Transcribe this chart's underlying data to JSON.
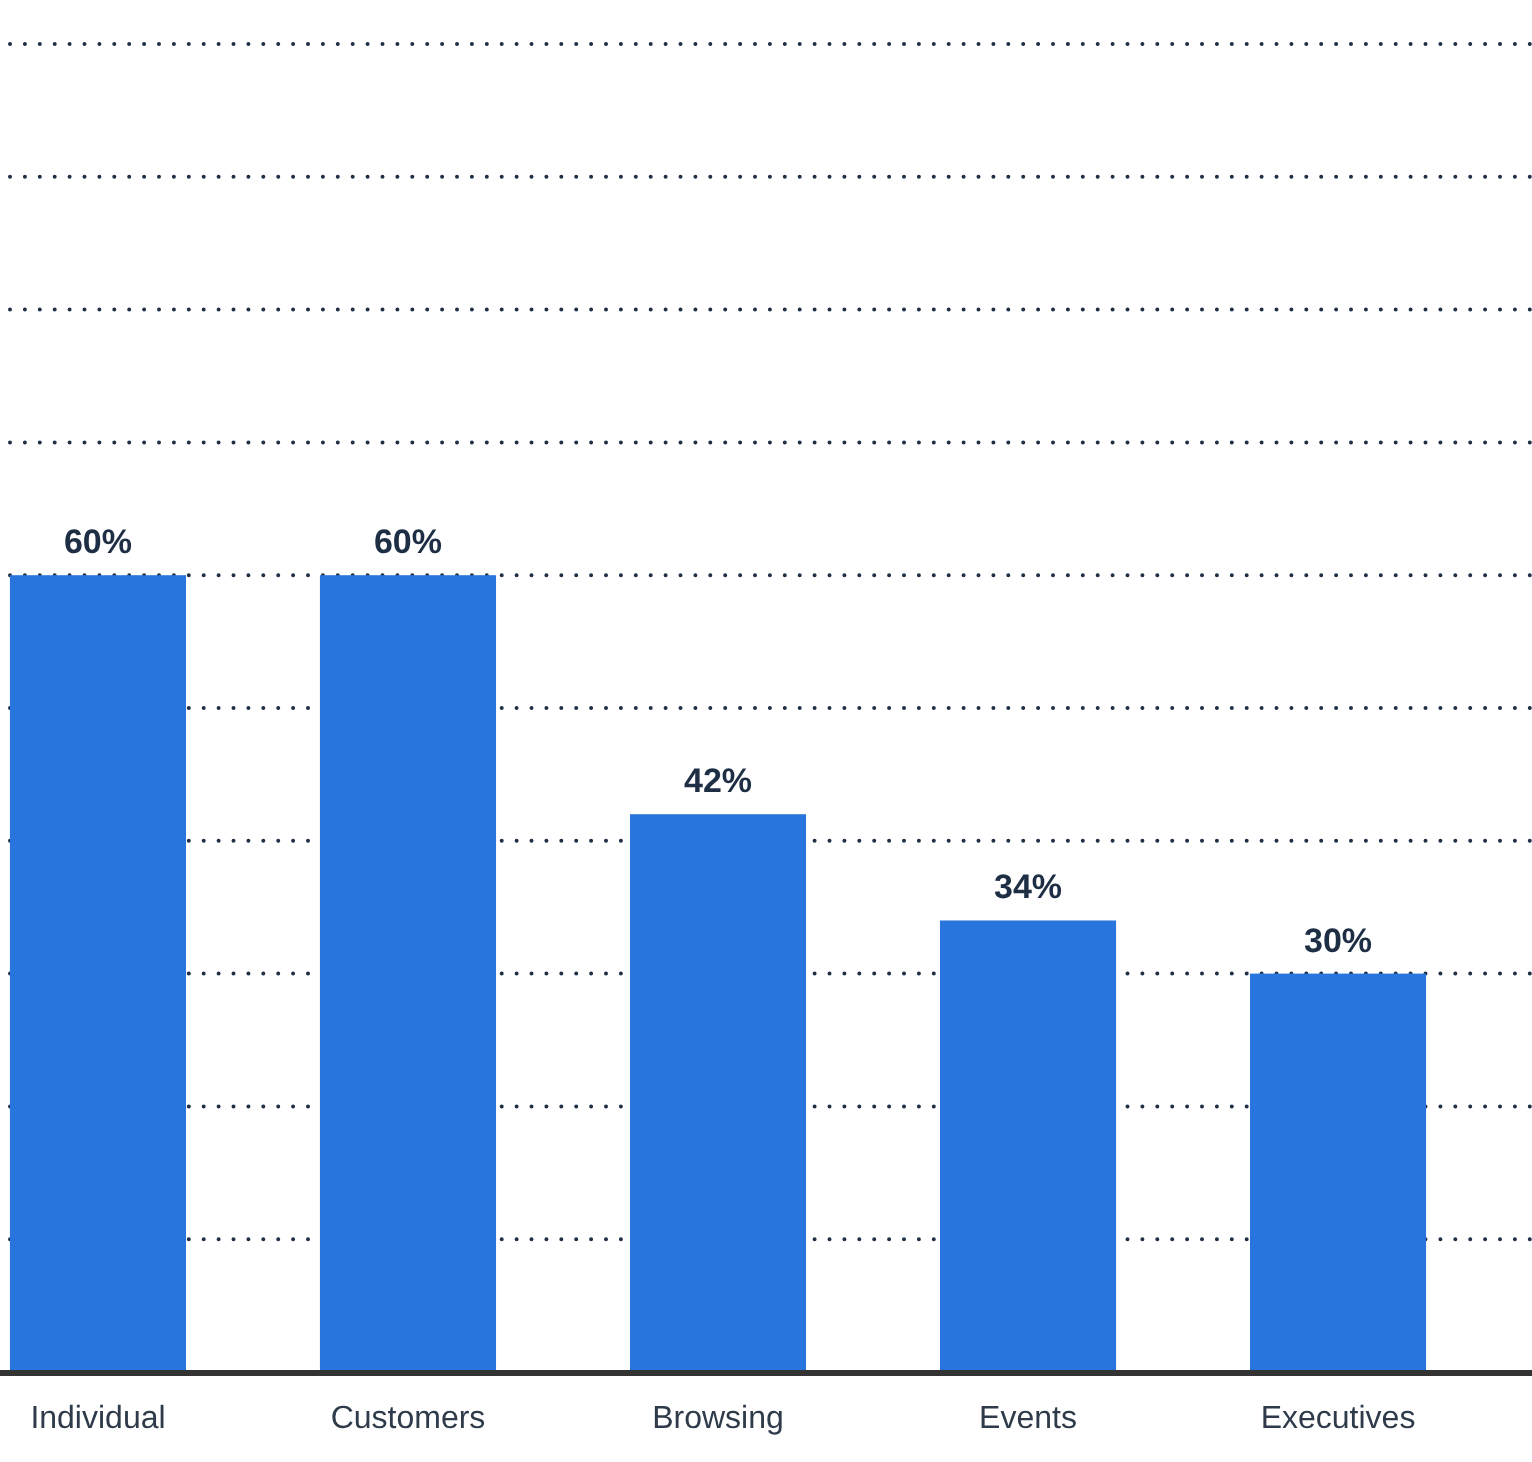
{
  "chart_data": {
    "type": "bar",
    "categories": [
      "Individual",
      "Customers",
      "Browsing",
      "Events",
      "Executives"
    ],
    "values": [
      60,
      60,
      42,
      34,
      30
    ],
    "value_labels": [
      "60%",
      "60%",
      "42%",
      "34%",
      "30%"
    ],
    "color": "#2875dd",
    "ylim": [
      0,
      100
    ],
    "yticks": [
      {
        "value": 0,
        "label": null
      },
      {
        "value": 10,
        "label": null
      },
      {
        "value": 20,
        "label": null
      },
      {
        "value": 30,
        "label": null
      },
      {
        "value": 40,
        "label": null
      },
      {
        "value": 50,
        "label": null
      },
      {
        "value": 60,
        "label": null
      },
      {
        "value": 70,
        "label": null
      },
      {
        "value": 80,
        "label": null
      },
      {
        "value": 90,
        "label": null
      },
      {
        "value": 100,
        "label": null
      }
    ],
    "grid": "y",
    "tick_labels": "x"
  }
}
